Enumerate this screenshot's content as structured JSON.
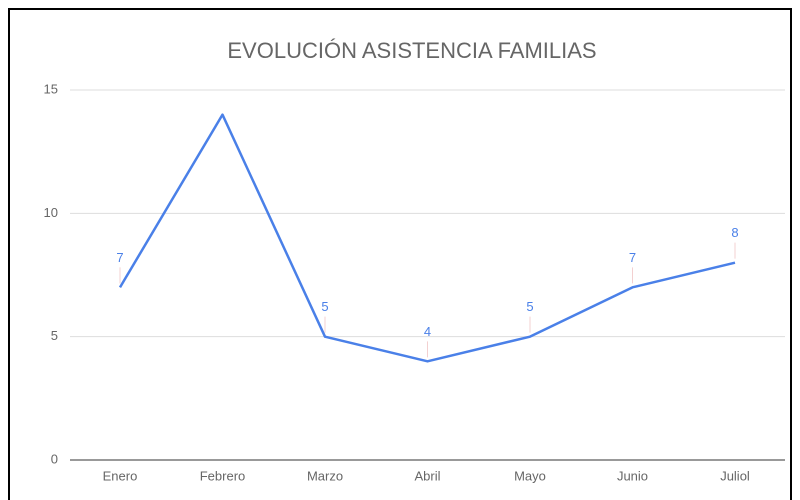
{
  "chart_data": {
    "type": "line",
    "title": "EVOLUCIÓN ASISTENCIA FAMILIAS",
    "categories": [
      "Enero",
      "Febrero",
      "Marzo",
      "Abril",
      "Mayo",
      "Junio",
      "Juliol"
    ],
    "series": [
      {
        "color": "#4a80e8",
        "values": [
          7,
          14,
          5,
          4,
          5,
          7,
          8
        ],
        "value_labels": [
          "7",
          null,
          "5",
          "4",
          "5",
          "7",
          "8"
        ]
      }
    ],
    "ylim": [
      0,
      15
    ],
    "yticks": [
      0,
      5,
      10,
      15
    ],
    "grid": true
  }
}
